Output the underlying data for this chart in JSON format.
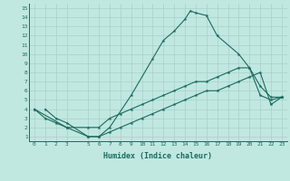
{
  "title": "",
  "xlabel": "Humidex (Indice chaleur)",
  "bg_color": "#c0e8e0",
  "line_color": "#1a6b60",
  "grid_color": "#a8d0c8",
  "xlim": [
    -0.5,
    23.5
  ],
  "ylim": [
    0.5,
    15.5
  ],
  "xticks": [
    0,
    1,
    2,
    3,
    5,
    6,
    7,
    8,
    9,
    10,
    11,
    12,
    13,
    14,
    15,
    16,
    17,
    18,
    19,
    20,
    21,
    22,
    23
  ],
  "yticks": [
    1,
    2,
    3,
    4,
    5,
    6,
    7,
    8,
    9,
    10,
    11,
    12,
    13,
    14,
    15
  ],
  "line1": {
    "x": [
      1,
      2,
      3,
      5,
      6,
      7,
      9,
      11,
      12,
      13,
      14,
      14.5,
      15,
      16,
      17,
      19,
      20,
      21,
      22,
      23
    ],
    "y": [
      4,
      3,
      2.5,
      1,
      1,
      2,
      5.5,
      9.5,
      11.5,
      12.5,
      13.8,
      14.7,
      14.5,
      14.2,
      12.0,
      10.0,
      8.5,
      6.5,
      5.3,
      5.3
    ]
  },
  "line2": {
    "x": [
      0,
      1,
      2,
      3,
      5,
      6,
      7,
      8,
      9,
      10,
      11,
      12,
      13,
      14,
      15,
      16,
      17,
      18,
      19,
      20,
      21,
      22,
      23
    ],
    "y": [
      4,
      3,
      2.5,
      2,
      2,
      2,
      3,
      3.5,
      4,
      4.5,
      5,
      5.5,
      6,
      6.5,
      7,
      7,
      7.5,
      8,
      8.5,
      8.5,
      5.5,
      5.0,
      5.3
    ]
  },
  "line3": {
    "x": [
      0,
      3,
      5,
      6,
      7,
      8,
      9,
      10,
      11,
      12,
      13,
      14,
      15,
      16,
      17,
      18,
      19,
      20,
      21,
      22,
      23
    ],
    "y": [
      4,
      2,
      1,
      1,
      1.5,
      2,
      2.5,
      3,
      3.5,
      4,
      4.5,
      5,
      5.5,
      6,
      6,
      6.5,
      7,
      7.5,
      8,
      4.5,
      5.3
    ]
  }
}
